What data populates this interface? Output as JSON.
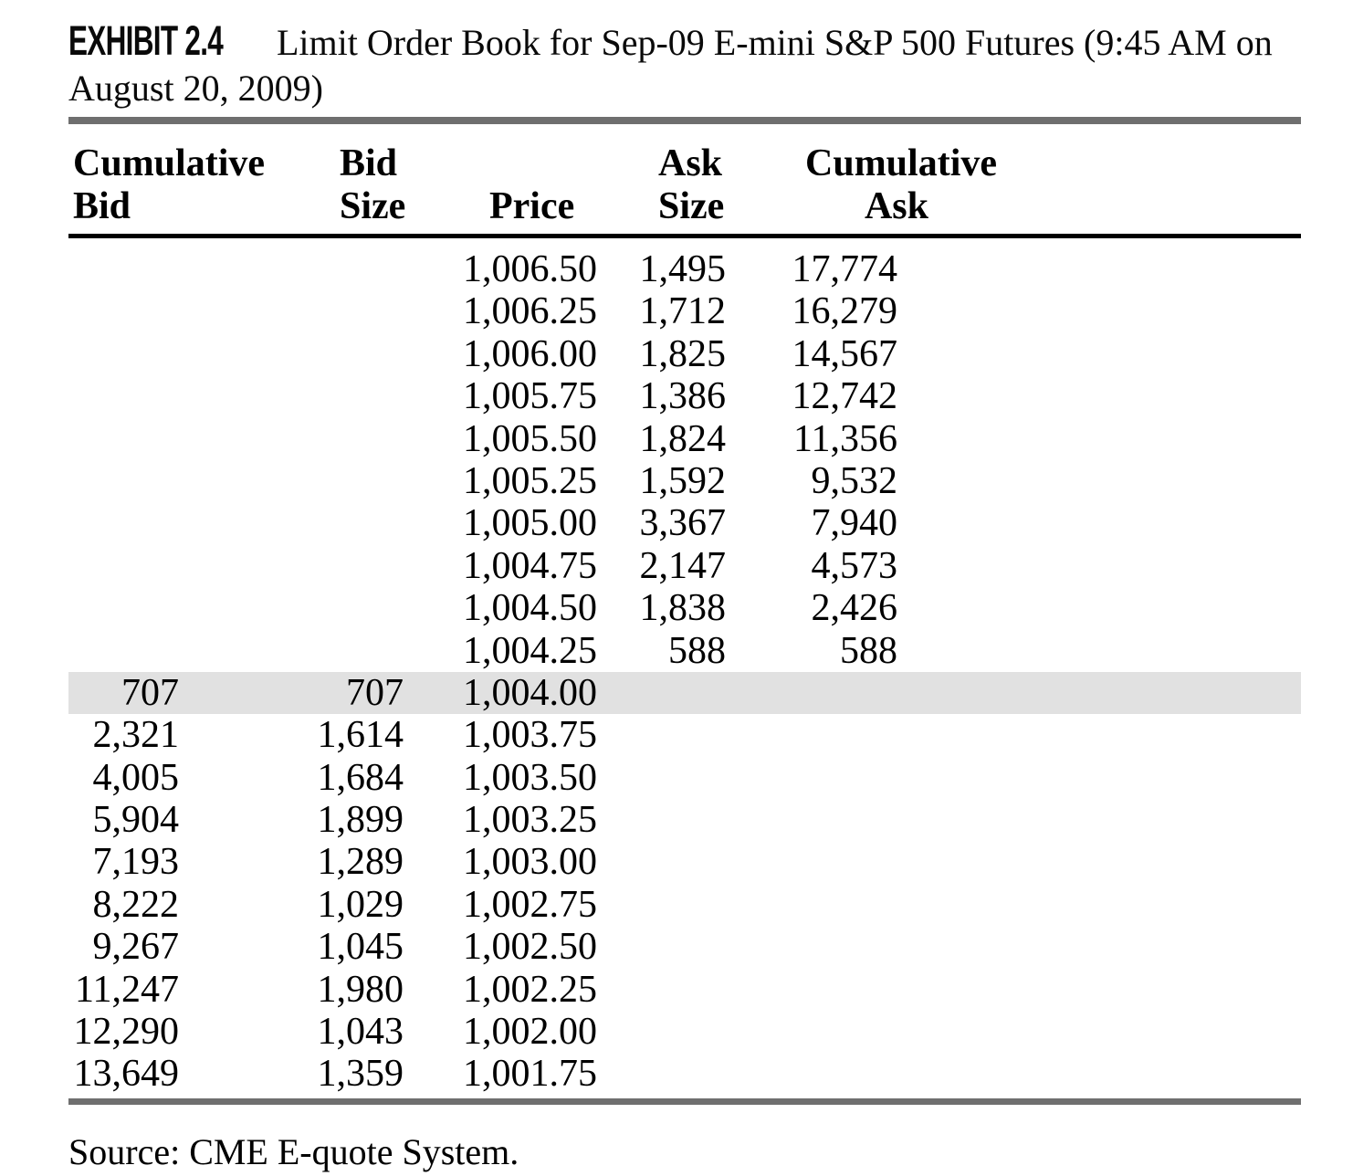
{
  "exhibit": {
    "label": "EXHIBIT 2.4",
    "title": "Limit Order Book for Sep-09 E-mini S&P 500 Futures (9:45 AM on\nAugust 20, 2009)"
  },
  "table": {
    "headers": {
      "cumulative_bid": {
        "line1": "Cumulative",
        "line2": "Bid"
      },
      "bid_size": {
        "line1": "Bid",
        "line2": "Size"
      },
      "price": {
        "line2": "Price"
      },
      "ask_size": {
        "line1": "Ask",
        "line2": "Size"
      },
      "cumulative_ask": {
        "line1": "Cumulative",
        "line2": "Ask"
      }
    },
    "rows": [
      {
        "cumulative_bid": "",
        "bid_size": "",
        "price": "1,006.50",
        "ask_size": "1,495",
        "cumulative_ask": "17,774",
        "highlight": false
      },
      {
        "cumulative_bid": "",
        "bid_size": "",
        "price": "1,006.25",
        "ask_size": "1,712",
        "cumulative_ask": "16,279",
        "highlight": false
      },
      {
        "cumulative_bid": "",
        "bid_size": "",
        "price": "1,006.00",
        "ask_size": "1,825",
        "cumulative_ask": "14,567",
        "highlight": false
      },
      {
        "cumulative_bid": "",
        "bid_size": "",
        "price": "1,005.75",
        "ask_size": "1,386",
        "cumulative_ask": "12,742",
        "highlight": false
      },
      {
        "cumulative_bid": "",
        "bid_size": "",
        "price": "1,005.50",
        "ask_size": "1,824",
        "cumulative_ask": "11,356",
        "highlight": false
      },
      {
        "cumulative_bid": "",
        "bid_size": "",
        "price": "1,005.25",
        "ask_size": "1,592",
        "cumulative_ask": "9,532",
        "highlight": false
      },
      {
        "cumulative_bid": "",
        "bid_size": "",
        "price": "1,005.00",
        "ask_size": "3,367",
        "cumulative_ask": "7,940",
        "highlight": false
      },
      {
        "cumulative_bid": "",
        "bid_size": "",
        "price": "1,004.75",
        "ask_size": "2,147",
        "cumulative_ask": "4,573",
        "highlight": false
      },
      {
        "cumulative_bid": "",
        "bid_size": "",
        "price": "1,004.50",
        "ask_size": "1,838",
        "cumulative_ask": "2,426",
        "highlight": false
      },
      {
        "cumulative_bid": "",
        "bid_size": "",
        "price": "1,004.25",
        "ask_size": "588",
        "cumulative_ask": "588",
        "highlight": false
      },
      {
        "cumulative_bid": "707",
        "bid_size": "707",
        "price": "1,004.00",
        "ask_size": "",
        "cumulative_ask": "",
        "highlight": true
      },
      {
        "cumulative_bid": "2,321",
        "bid_size": "1,614",
        "price": "1,003.75",
        "ask_size": "",
        "cumulative_ask": "",
        "highlight": false
      },
      {
        "cumulative_bid": "4,005",
        "bid_size": "1,684",
        "price": "1,003.50",
        "ask_size": "",
        "cumulative_ask": "",
        "highlight": false
      },
      {
        "cumulative_bid": "5,904",
        "bid_size": "1,899",
        "price": "1,003.25",
        "ask_size": "",
        "cumulative_ask": "",
        "highlight": false
      },
      {
        "cumulative_bid": "7,193",
        "bid_size": "1,289",
        "price": "1,003.00",
        "ask_size": "",
        "cumulative_ask": "",
        "highlight": false
      },
      {
        "cumulative_bid": "8,222",
        "bid_size": "1,029",
        "price": "1,002.75",
        "ask_size": "",
        "cumulative_ask": "",
        "highlight": false
      },
      {
        "cumulative_bid": "9,267",
        "bid_size": "1,045",
        "price": "1,002.50",
        "ask_size": "",
        "cumulative_ask": "",
        "highlight": false
      },
      {
        "cumulative_bid": "11,247",
        "bid_size": "1,980",
        "price": "1,002.25",
        "ask_size": "",
        "cumulative_ask": "",
        "highlight": false
      },
      {
        "cumulative_bid": "12,290",
        "bid_size": "1,043",
        "price": "1,002.00",
        "ask_size": "",
        "cumulative_ask": "",
        "highlight": false
      },
      {
        "cumulative_bid": "13,649",
        "bid_size": "1,359",
        "price": "1,001.75",
        "ask_size": "",
        "cumulative_ask": "",
        "highlight": false
      }
    ]
  },
  "source": "Source: CME E-quote System.",
  "colors": {
    "bar_gray": "#6f6f6f",
    "rule_black": "#000000",
    "highlight_row": "#e1e1e1",
    "text": "#000000"
  }
}
